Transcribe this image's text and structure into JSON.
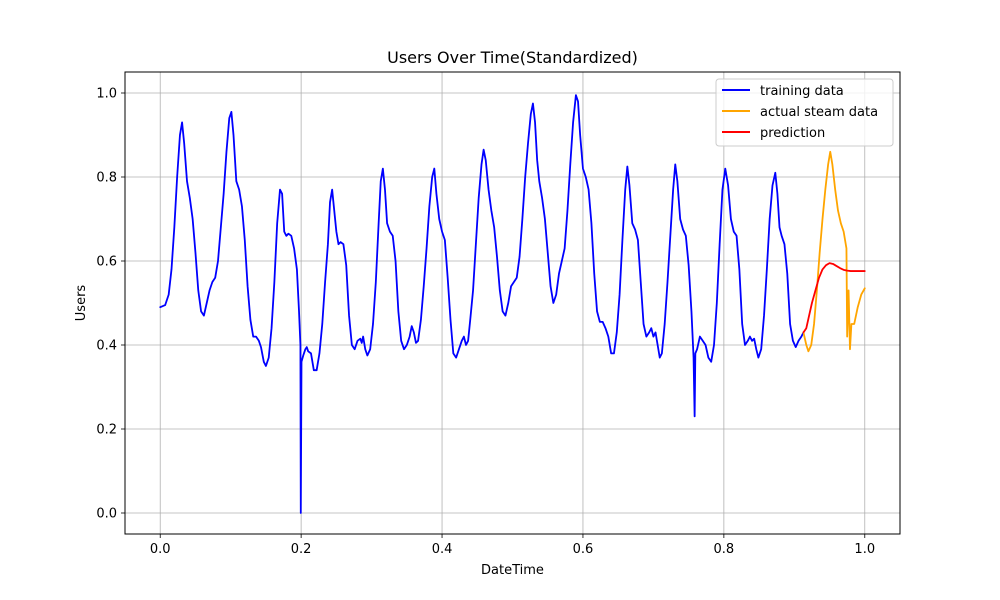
{
  "chart_data": {
    "type": "line",
    "title": "Users Over Time(Standardized)",
    "xlabel": "DateTime",
    "ylabel": "Users",
    "xlim": [
      -0.05,
      1.05
    ],
    "ylim": [
      -0.05,
      1.05
    ],
    "x_ticks": [
      "0.0",
      "0.2",
      "0.4",
      "0.6",
      "0.8",
      "1.0"
    ],
    "y_ticks": [
      "0.0",
      "0.2",
      "0.4",
      "0.6",
      "0.8",
      "1.0"
    ],
    "grid": true,
    "legend_position": "top-right",
    "series": [
      {
        "name": "training data",
        "color": "#0000ff",
        "points": [
          [
            0.0,
            0.49
          ],
          [
            0.007,
            0.495
          ],
          [
            0.012,
            0.52
          ],
          [
            0.016,
            0.58
          ],
          [
            0.02,
            0.68
          ],
          [
            0.024,
            0.8
          ],
          [
            0.028,
            0.9
          ],
          [
            0.031,
            0.93
          ],
          [
            0.034,
            0.88
          ],
          [
            0.038,
            0.79
          ],
          [
            0.042,
            0.75
          ],
          [
            0.046,
            0.7
          ],
          [
            0.05,
            0.62
          ],
          [
            0.054,
            0.53
          ],
          [
            0.058,
            0.48
          ],
          [
            0.062,
            0.47
          ],
          [
            0.066,
            0.5
          ],
          [
            0.07,
            0.53
          ],
          [
            0.074,
            0.55
          ],
          [
            0.078,
            0.56
          ],
          [
            0.082,
            0.6
          ],
          [
            0.086,
            0.68
          ],
          [
            0.09,
            0.76
          ],
          [
            0.094,
            0.86
          ],
          [
            0.098,
            0.94
          ],
          [
            0.101,
            0.955
          ],
          [
            0.104,
            0.9
          ],
          [
            0.108,
            0.79
          ],
          [
            0.112,
            0.77
          ],
          [
            0.116,
            0.73
          ],
          [
            0.12,
            0.65
          ],
          [
            0.124,
            0.54
          ],
          [
            0.128,
            0.46
          ],
          [
            0.132,
            0.42
          ],
          [
            0.136,
            0.42
          ],
          [
            0.14,
            0.41
          ],
          [
            0.143,
            0.395
          ],
          [
            0.147,
            0.36
          ],
          [
            0.15,
            0.35
          ],
          [
            0.154,
            0.37
          ],
          [
            0.158,
            0.44
          ],
          [
            0.162,
            0.55
          ],
          [
            0.166,
            0.69
          ],
          [
            0.17,
            0.77
          ],
          [
            0.173,
            0.76
          ],
          [
            0.176,
            0.67
          ],
          [
            0.179,
            0.66
          ],
          [
            0.182,
            0.665
          ],
          [
            0.186,
            0.66
          ],
          [
            0.19,
            0.63
          ],
          [
            0.194,
            0.58
          ],
          [
            0.197,
            0.48
          ],
          [
            0.199,
            0.4
          ],
          [
            0.1995,
            0.0
          ],
          [
            0.2005,
            0.36
          ],
          [
            0.203,
            0.375
          ],
          [
            0.206,
            0.39
          ],
          [
            0.208,
            0.395
          ],
          [
            0.21,
            0.385
          ],
          [
            0.214,
            0.38
          ],
          [
            0.218,
            0.34
          ],
          [
            0.222,
            0.34
          ],
          [
            0.226,
            0.38
          ],
          [
            0.23,
            0.45
          ],
          [
            0.234,
            0.55
          ],
          [
            0.238,
            0.64
          ],
          [
            0.241,
            0.74
          ],
          [
            0.244,
            0.77
          ],
          [
            0.247,
            0.72
          ],
          [
            0.25,
            0.67
          ],
          [
            0.253,
            0.64
          ],
          [
            0.256,
            0.645
          ],
          [
            0.26,
            0.64
          ],
          [
            0.264,
            0.59
          ],
          [
            0.268,
            0.47
          ],
          [
            0.272,
            0.4
          ],
          [
            0.276,
            0.39
          ],
          [
            0.28,
            0.41
          ],
          [
            0.284,
            0.415
          ],
          [
            0.286,
            0.405
          ],
          [
            0.288,
            0.42
          ],
          [
            0.291,
            0.39
          ],
          [
            0.294,
            0.375
          ],
          [
            0.298,
            0.39
          ],
          [
            0.302,
            0.45
          ],
          [
            0.306,
            0.55
          ],
          [
            0.31,
            0.69
          ],
          [
            0.313,
            0.79
          ],
          [
            0.316,
            0.82
          ],
          [
            0.319,
            0.77
          ],
          [
            0.322,
            0.69
          ],
          [
            0.326,
            0.67
          ],
          [
            0.33,
            0.66
          ],
          [
            0.334,
            0.6
          ],
          [
            0.338,
            0.48
          ],
          [
            0.342,
            0.41
          ],
          [
            0.346,
            0.39
          ],
          [
            0.35,
            0.4
          ],
          [
            0.354,
            0.42
          ],
          [
            0.357,
            0.445
          ],
          [
            0.36,
            0.43
          ],
          [
            0.363,
            0.405
          ],
          [
            0.366,
            0.41
          ],
          [
            0.37,
            0.46
          ],
          [
            0.374,
            0.54
          ],
          [
            0.378,
            0.63
          ],
          [
            0.382,
            0.73
          ],
          [
            0.386,
            0.8
          ],
          [
            0.389,
            0.82
          ],
          [
            0.392,
            0.76
          ],
          [
            0.396,
            0.7
          ],
          [
            0.4,
            0.67
          ],
          [
            0.404,
            0.65
          ],
          [
            0.408,
            0.56
          ],
          [
            0.412,
            0.46
          ],
          [
            0.416,
            0.38
          ],
          [
            0.42,
            0.37
          ],
          [
            0.424,
            0.39
          ],
          [
            0.428,
            0.41
          ],
          [
            0.431,
            0.42
          ],
          [
            0.434,
            0.4
          ],
          [
            0.437,
            0.41
          ],
          [
            0.44,
            0.46
          ],
          [
            0.444,
            0.53
          ],
          [
            0.448,
            0.64
          ],
          [
            0.452,
            0.75
          ],
          [
            0.456,
            0.83
          ],
          [
            0.459,
            0.865
          ],
          [
            0.462,
            0.84
          ],
          [
            0.466,
            0.77
          ],
          [
            0.47,
            0.72
          ],
          [
            0.474,
            0.68
          ],
          [
            0.478,
            0.61
          ],
          [
            0.482,
            0.53
          ],
          [
            0.486,
            0.48
          ],
          [
            0.49,
            0.47
          ],
          [
            0.494,
            0.5
          ],
          [
            0.498,
            0.54
          ],
          [
            0.502,
            0.55
          ],
          [
            0.506,
            0.56
          ],
          [
            0.51,
            0.61
          ],
          [
            0.514,
            0.7
          ],
          [
            0.518,
            0.8
          ],
          [
            0.522,
            0.88
          ],
          [
            0.526,
            0.95
          ],
          [
            0.529,
            0.975
          ],
          [
            0.532,
            0.93
          ],
          [
            0.535,
            0.84
          ],
          [
            0.538,
            0.79
          ],
          [
            0.542,
            0.75
          ],
          [
            0.546,
            0.7
          ],
          [
            0.55,
            0.62
          ],
          [
            0.554,
            0.54
          ],
          [
            0.558,
            0.5
          ],
          [
            0.562,
            0.52
          ],
          [
            0.566,
            0.57
          ],
          [
            0.57,
            0.6
          ],
          [
            0.574,
            0.63
          ],
          [
            0.578,
            0.72
          ],
          [
            0.582,
            0.83
          ],
          [
            0.586,
            0.93
          ],
          [
            0.59,
            0.995
          ],
          [
            0.593,
            0.98
          ],
          [
            0.596,
            0.9
          ],
          [
            0.6,
            0.82
          ],
          [
            0.604,
            0.8
          ],
          [
            0.608,
            0.77
          ],
          [
            0.612,
            0.69
          ],
          [
            0.616,
            0.57
          ],
          [
            0.62,
            0.48
          ],
          [
            0.624,
            0.455
          ],
          [
            0.628,
            0.455
          ],
          [
            0.632,
            0.44
          ],
          [
            0.636,
            0.42
          ],
          [
            0.64,
            0.38
          ],
          [
            0.644,
            0.38
          ],
          [
            0.648,
            0.43
          ],
          [
            0.652,
            0.52
          ],
          [
            0.656,
            0.65
          ],
          [
            0.66,
            0.77
          ],
          [
            0.663,
            0.825
          ],
          [
            0.666,
            0.78
          ],
          [
            0.67,
            0.69
          ],
          [
            0.674,
            0.675
          ],
          [
            0.678,
            0.65
          ],
          [
            0.682,
            0.55
          ],
          [
            0.686,
            0.45
          ],
          [
            0.69,
            0.42
          ],
          [
            0.694,
            0.43
          ],
          [
            0.697,
            0.44
          ],
          [
            0.7,
            0.42
          ],
          [
            0.703,
            0.43
          ],
          [
            0.706,
            0.4
          ],
          [
            0.709,
            0.37
          ],
          [
            0.712,
            0.38
          ],
          [
            0.716,
            0.45
          ],
          [
            0.72,
            0.55
          ],
          [
            0.724,
            0.66
          ],
          [
            0.728,
            0.77
          ],
          [
            0.731,
            0.83
          ],
          [
            0.734,
            0.79
          ],
          [
            0.738,
            0.7
          ],
          [
            0.742,
            0.675
          ],
          [
            0.746,
            0.66
          ],
          [
            0.75,
            0.59
          ],
          [
            0.754,
            0.48
          ],
          [
            0.757,
            0.37
          ],
          [
            0.7585,
            0.23
          ],
          [
            0.7595,
            0.38
          ],
          [
            0.762,
            0.39
          ],
          [
            0.766,
            0.42
          ],
          [
            0.77,
            0.41
          ],
          [
            0.774,
            0.4
          ],
          [
            0.778,
            0.37
          ],
          [
            0.782,
            0.36
          ],
          [
            0.786,
            0.4
          ],
          [
            0.79,
            0.5
          ],
          [
            0.794,
            0.64
          ],
          [
            0.798,
            0.77
          ],
          [
            0.802,
            0.82
          ],
          [
            0.806,
            0.78
          ],
          [
            0.81,
            0.7
          ],
          [
            0.814,
            0.67
          ],
          [
            0.818,
            0.66
          ],
          [
            0.822,
            0.58
          ],
          [
            0.826,
            0.45
          ],
          [
            0.83,
            0.4
          ],
          [
            0.834,
            0.41
          ],
          [
            0.837,
            0.42
          ],
          [
            0.84,
            0.41
          ],
          [
            0.843,
            0.415
          ],
          [
            0.846,
            0.39
          ],
          [
            0.849,
            0.37
          ],
          [
            0.853,
            0.39
          ],
          [
            0.857,
            0.47
          ],
          [
            0.861,
            0.58
          ],
          [
            0.865,
            0.7
          ],
          [
            0.869,
            0.78
          ],
          [
            0.873,
            0.81
          ],
          [
            0.876,
            0.76
          ],
          [
            0.879,
            0.68
          ],
          [
            0.882,
            0.66
          ],
          [
            0.886,
            0.64
          ],
          [
            0.89,
            0.57
          ],
          [
            0.894,
            0.45
          ],
          [
            0.898,
            0.41
          ],
          [
            0.902,
            0.395
          ],
          [
            0.906,
            0.41
          ],
          [
            0.91,
            0.42
          ],
          [
            0.913,
            0.43
          ]
        ]
      },
      {
        "name": "actual steam data",
        "color": "#ffa500",
        "points": [
          [
            0.913,
            0.43
          ],
          [
            0.917,
            0.4
          ],
          [
            0.92,
            0.385
          ],
          [
            0.924,
            0.4
          ],
          [
            0.928,
            0.45
          ],
          [
            0.932,
            0.53
          ],
          [
            0.936,
            0.62
          ],
          [
            0.94,
            0.7
          ],
          [
            0.944,
            0.77
          ],
          [
            0.948,
            0.83
          ],
          [
            0.951,
            0.86
          ],
          [
            0.954,
            0.83
          ],
          [
            0.958,
            0.77
          ],
          [
            0.962,
            0.72
          ],
          [
            0.966,
            0.69
          ],
          [
            0.97,
            0.67
          ],
          [
            0.974,
            0.63
          ],
          [
            0.975,
            0.42
          ],
          [
            0.977,
            0.53
          ],
          [
            0.979,
            0.39
          ],
          [
            0.981,
            0.45
          ],
          [
            0.985,
            0.45
          ],
          [
            0.99,
            0.49
          ],
          [
            0.995,
            0.52
          ],
          [
            1.0,
            0.535
          ]
        ]
      },
      {
        "name": "prediction",
        "color": "#ff0000",
        "points": [
          [
            0.913,
            0.43
          ],
          [
            0.917,
            0.44
          ],
          [
            0.921,
            0.47
          ],
          [
            0.925,
            0.5
          ],
          [
            0.93,
            0.53
          ],
          [
            0.935,
            0.56
          ],
          [
            0.94,
            0.58
          ],
          [
            0.945,
            0.59
          ],
          [
            0.95,
            0.595
          ],
          [
            0.955,
            0.593
          ],
          [
            0.96,
            0.588
          ],
          [
            0.965,
            0.583
          ],
          [
            0.97,
            0.579
          ],
          [
            0.975,
            0.577
          ],
          [
            0.98,
            0.576
          ],
          [
            0.99,
            0.576
          ],
          [
            1.0,
            0.576
          ]
        ]
      }
    ]
  }
}
